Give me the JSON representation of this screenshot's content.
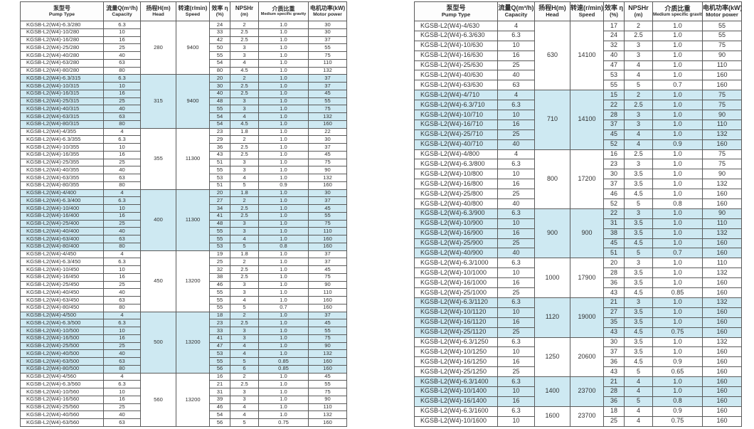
{
  "page": {
    "background": "#ffffff"
  },
  "colors": {
    "shaded_row": "#cee9f2",
    "border": "#5a5a5a",
    "text": "#303030"
  },
  "columns": {
    "pump_type": {
      "zh": "泵型号",
      "en": "Pump Type"
    },
    "capacity": {
      "zh": "流量Q(m³/h)",
      "en": "Capacity"
    },
    "head": {
      "zh": "扬程H(m)",
      "en": "Head"
    },
    "speed": {
      "zh": "转速(r/min)",
      "en": "Speed"
    },
    "efficiency": {
      "zh": "效率 η",
      "en": "(%)"
    },
    "npshr": {
      "zh": "NPSHr",
      "en": "(m)"
    },
    "gravity": {
      "zh": "介质比重",
      "en": "Medium specific gravity"
    },
    "power": {
      "zh": "电机功率(kW)",
      "en": "Motor power"
    }
  },
  "left_table": {
    "groups": [
      {
        "head": "280",
        "speed": "9400",
        "shaded": false,
        "rows": [
          [
            "KGSB-L2(W4)-6.3/280",
            "6.3",
            "24",
            "2",
            "1.0",
            "30"
          ],
          [
            "KGSB-L2(W4)-10/280",
            "10",
            "33",
            "2.5",
            "1.0",
            "30"
          ],
          [
            "KGSB-L2(W4)-16/280",
            "16",
            "42",
            "2.5",
            "1.0",
            "37"
          ],
          [
            "KGSB-L2(W4)-25/280",
            "25",
            "50",
            "3",
            "1.0",
            "55"
          ],
          [
            "KGSB-L2(W4)-40/280",
            "40",
            "55",
            "3",
            "1.0",
            "75"
          ],
          [
            "KGSB-L2(W4)-63/280",
            "63",
            "54",
            "4",
            "1.0",
            "110"
          ],
          [
            "KGSB-L2(W4)-80/280",
            "80",
            "80",
            "4.5",
            "1.0",
            "132"
          ]
        ]
      },
      {
        "head": "315",
        "speed": "9400",
        "shaded": true,
        "rows": [
          [
            "KGSB-L2(W4)-6.3/315",
            "6.3",
            "20",
            "2",
            "1.0",
            "37"
          ],
          [
            "KGSB-L2(W4)-10/315",
            "10",
            "30",
            "2.5",
            "1.0",
            "37"
          ],
          [
            "KGSB-L2(W4)-16/315",
            "16",
            "40",
            "2.5",
            "1.0",
            "45"
          ],
          [
            "KGSB-L2(W4)-25/315",
            "25",
            "48",
            "3",
            "1.0",
            "55"
          ],
          [
            "KGSB-L2(W4)-40/315",
            "40",
            "55",
            "3",
            "1.0",
            "75"
          ],
          [
            "KGSB-L2(W4)-63/315",
            "63",
            "54",
            "4",
            "1.0",
            "132"
          ],
          [
            "KGSB-L2(W4)-80/315",
            "80",
            "54",
            "4.5",
            "1.0",
            "160"
          ]
        ]
      },
      {
        "head": "355",
        "speed": "11300",
        "shaded": false,
        "rows": [
          [
            "KGSB-L2(W4)-4/355",
            "4",
            "23",
            "1.8",
            "1.0",
            "22"
          ],
          [
            "KGSB-L2(W4)-6.3/355",
            "6.3",
            "29",
            "2",
            "1.0",
            "30"
          ],
          [
            "KGSB-L2(W4)-10/355",
            "10",
            "36",
            "2.5",
            "1.0",
            "37"
          ],
          [
            "KGSB-L2(W4)-16/355",
            "16",
            "43",
            "2.5",
            "1.0",
            "45"
          ],
          [
            "KGSB-L2(W4)-25/355",
            "25",
            "51",
            "3",
            "1.0",
            "75"
          ],
          [
            "KGSB-L2(W4)-40/355",
            "40",
            "55",
            "3",
            "1.0",
            "90"
          ],
          [
            "KGSB-L2(W4)-63/355",
            "63",
            "53",
            "4",
            "1.0",
            "132"
          ],
          [
            "KGSB-L2(W4)-80/355",
            "80",
            "51",
            "5",
            "0.9",
            "160"
          ]
        ]
      },
      {
        "head": "400",
        "speed": "11300",
        "shaded": true,
        "rows": [
          [
            "KGSB-L2(W4)-4/400",
            "4",
            "20",
            "1.8",
            "1.0",
            "30"
          ],
          [
            "KGSB-L2(W4)-6.3/400",
            "6.3",
            "27",
            "2",
            "1.0",
            "37"
          ],
          [
            "KGSB-L2(W4)-10/400",
            "10",
            "34",
            "2.5",
            "1.0",
            "45"
          ],
          [
            "KGSB-L2(W4)-16/400",
            "16",
            "41",
            "2.5",
            "1.0",
            "55"
          ],
          [
            "KGSB-L2(W4)-25/400",
            "25",
            "48",
            "3",
            "1.0",
            "75"
          ],
          [
            "KGSB-L2(W4)-40/400",
            "40",
            "55",
            "3",
            "1.0",
            "110"
          ],
          [
            "KGSB-L2(W4)-63/400",
            "63",
            "55",
            "4",
            "1.0",
            "160"
          ],
          [
            "KGSB-L2(W4)-80/400",
            "80",
            "53",
            "5",
            "0.8",
            "160"
          ]
        ]
      },
      {
        "head": "450",
        "speed": "13200",
        "shaded": false,
        "rows": [
          [
            "KGSB-L2(W4)-4/450",
            "4",
            "19",
            "1.8",
            "1.0",
            "37"
          ],
          [
            "KGSB-L2(W4)-6.3/450",
            "6.3",
            "25",
            "2",
            "1.0",
            "37"
          ],
          [
            "KGSB-L2(W4)-10/450",
            "10",
            "32",
            "2.5",
            "1.0",
            "45"
          ],
          [
            "KGSB-L2(W4)-16/450",
            "16",
            "38",
            "2.5",
            "1.0",
            "75"
          ],
          [
            "KGSB-L2(W4)-25/450",
            "25",
            "46",
            "3",
            "1.0",
            "90"
          ],
          [
            "KGSB-L2(W4)-40/450",
            "40",
            "55",
            "3",
            "1.0",
            "110"
          ],
          [
            "KGSB-L2(W4)-63/450",
            "63",
            "55",
            "4",
            "1.0",
            "160"
          ],
          [
            "KGSB-L2(W4)-80/450",
            "80",
            "55",
            "5",
            "0.7",
            "160"
          ]
        ]
      },
      {
        "head": "500",
        "speed": "13200",
        "shaded": true,
        "rows": [
          [
            "KGSB-L2(W4)-4/500",
            "4",
            "18",
            "2",
            "1.0",
            "37"
          ],
          [
            "KGSB-L2(W4)-6.3/500",
            "6.3",
            "23",
            "2.5",
            "1.0",
            "45"
          ],
          [
            "KGSB-L2(W4)-10/500",
            "10",
            "33",
            "3",
            "1.0",
            "55"
          ],
          [
            "KGSB-L2(W4)-16/500",
            "16",
            "41",
            "3",
            "1.0",
            "75"
          ],
          [
            "KGSB-L2(W4)-25/500",
            "25",
            "47",
            "4",
            "1.0",
            "90"
          ],
          [
            "KGSB-L2(W4)-40/500",
            "40",
            "53",
            "4",
            "1.0",
            "132"
          ],
          [
            "KGSB-L2(W4)-63/500",
            "63",
            "55",
            "5",
            "0.85",
            "160"
          ],
          [
            "KGSB-L2(W4)-80/500",
            "80",
            "56",
            "6",
            "0.85",
            "160"
          ]
        ]
      },
      {
        "head": "560",
        "speed": "13200",
        "shaded": false,
        "rows": [
          [
            "KGSB-L2(W4)-4/560",
            "4",
            "16",
            "2",
            "1.0",
            "45"
          ],
          [
            "KGSB-L2(W4)-6.3/560",
            "6.3",
            "21",
            "2.5",
            "1.0",
            "55"
          ],
          [
            "KGSB-L2(W4)-10/560",
            "10",
            "31",
            "3",
            "1.0",
            "75"
          ],
          [
            "KGSB-L2(W4)-16/560",
            "16",
            "39",
            "3",
            "1.0",
            "90"
          ],
          [
            "KGSB-L2(W4)-25/560",
            "25",
            "46",
            "4",
            "1.0",
            "110"
          ],
          [
            "KGSB-L2(W4)-40/560",
            "40",
            "54",
            "4",
            "1.0",
            "132"
          ],
          [
            "KGSB-L2(W4)-63/560",
            "63",
            "56",
            "5",
            "0.75",
            "160"
          ]
        ]
      }
    ]
  },
  "right_table": {
    "groups": [
      {
        "head": "630",
        "speed": "14100",
        "shaded": false,
        "rows": [
          [
            "KGSB-L2(W4)-4/630",
            "4",
            "17",
            "2",
            "1.0",
            "55"
          ],
          [
            "KGSB-L2(W4)-6.3/630",
            "6.3",
            "24",
            "2.5",
            "1.0",
            "55"
          ],
          [
            "KGSB-L2(W4)-10/630",
            "10",
            "32",
            "3",
            "1.0",
            "75"
          ],
          [
            "KGSB-L2(W4)-16/630",
            "16",
            "40",
            "3",
            "1.0",
            "90"
          ],
          [
            "KGSB-L2(W4)-25/630",
            "25",
            "47",
            "4",
            "1.0",
            "110"
          ],
          [
            "KGSB-L2(W4)-40/630",
            "40",
            "53",
            "4",
            "1.0",
            "160"
          ],
          [
            "KGSB-L2(W4)-63/630",
            "63",
            "55",
            "5",
            "0.7",
            "160"
          ]
        ]
      },
      {
        "head": "710",
        "speed": "14100",
        "shaded": true,
        "rows": [
          [
            "KGSB-L2(W4)-4/710",
            "4",
            "15",
            "2",
            "1.0",
            "75"
          ],
          [
            "KGSB-L2(W4)-6.3/710",
            "6.3",
            "22",
            "2.5",
            "1.0",
            "75"
          ],
          [
            "KGSB-L2(W4)-10/710",
            "10",
            "28",
            "3",
            "1.0",
            "90"
          ],
          [
            "KGSB-L2(W4)-16/710",
            "16",
            "37",
            "3",
            "1.0",
            "110"
          ],
          [
            "KGSB-L2(W4)-25/710",
            "25",
            "45",
            "4",
            "1.0",
            "132"
          ],
          [
            "KGSB-L2(W4)-40/710",
            "40",
            "52",
            "4",
            "0.9",
            "160"
          ]
        ]
      },
      {
        "head": "800",
        "speed": "17200",
        "shaded": false,
        "rows": [
          [
            "KGSB-L2(W4)-4/800",
            "4",
            "16",
            "2.5",
            "1.0",
            "75"
          ],
          [
            "KGSB-L2(W4)-6.3/800",
            "6.3",
            "23",
            "3",
            "1.0",
            "75"
          ],
          [
            "KGSB-L2(W4)-10/800",
            "10",
            "30",
            "3.5",
            "1.0",
            "90"
          ],
          [
            "KGSB-L2(W4)-16/800",
            "16",
            "37",
            "3.5",
            "1.0",
            "132"
          ],
          [
            "KGSB-L2(W4)-25/800",
            "25",
            "46",
            "4.5",
            "1.0",
            "160"
          ],
          [
            "KGSB-L2(W4)-40/800",
            "40",
            "52",
            "5",
            "0.8",
            "160"
          ]
        ]
      },
      {
        "head": "900",
        "speed": "900",
        "shaded": true,
        "rows": [
          [
            "KGSB-L2(W4)-6.3/900",
            "6.3",
            "22",
            "3",
            "1.0",
            "90"
          ],
          [
            "KGSB-L2(W4)-10/900",
            "10",
            "31",
            "3.5",
            "1.0",
            "110"
          ],
          [
            "KGSB-L2(W4)-16/900",
            "16",
            "38",
            "3.5",
            "1.0",
            "132"
          ],
          [
            "KGSB-L2(W4)-25/900",
            "25",
            "45",
            "4.5",
            "1.0",
            "160"
          ],
          [
            "KGSB-L2(W4)-40/900",
            "40",
            "51",
            "5",
            "0.7",
            "160"
          ]
        ]
      },
      {
        "head": "1000",
        "speed": "17900",
        "shaded": false,
        "rows": [
          [
            "KGSB-L2(W4)-6.3/1000",
            "6.3",
            "20",
            "3",
            "1.0",
            "110"
          ],
          [
            "KGSB-L2(W4)-10/1000",
            "10",
            "28",
            "3.5",
            "1.0",
            "132"
          ],
          [
            "KGSB-L2(W4)-16/1000",
            "16",
            "36",
            "3.5",
            "1.0",
            "160"
          ],
          [
            "KGSB-L2(W4)-25/1000",
            "25",
            "43",
            "4.5",
            "0.85",
            "160"
          ]
        ]
      },
      {
        "head": "1120",
        "speed": "19000",
        "shaded": true,
        "rows": [
          [
            "KGSB-L2(W4)-6.3/1120",
            "6.3",
            "21",
            "3",
            "1.0",
            "132"
          ],
          [
            "KGSB-L2(W4)-10/1120",
            "10",
            "27",
            "3.5",
            "1.0",
            "160"
          ],
          [
            "KGSB-L2(W4)-16/1120",
            "16",
            "35",
            "3.5",
            "1.0",
            "160"
          ],
          [
            "KGSB-L2(W4)-25/1120",
            "25",
            "43",
            "4.5",
            "0.75",
            "160"
          ]
        ]
      },
      {
        "head": "1250",
        "speed": "20600",
        "shaded": false,
        "rows": [
          [
            "KGSB-L2(W4)-6.3/1250",
            "6.3",
            "30",
            "3.5",
            "1.0",
            "132"
          ],
          [
            "KGSB-L2(W4)-10/1250",
            "10",
            "37",
            "3.5",
            "1.0",
            "160"
          ],
          [
            "KGSB-L2(W4)-16/1250",
            "16",
            "36",
            "4.5",
            "0.9",
            "160"
          ],
          [
            "KGSB-L2(W4)-25/1250",
            "25",
            "43",
            "5",
            "0.65",
            "160"
          ]
        ]
      },
      {
        "head": "1400",
        "speed": "23700",
        "shaded": true,
        "rows": [
          [
            "KGSB-L2(W4)-6.3/1400",
            "6.3",
            "21",
            "4",
            "1.0",
            "160"
          ],
          [
            "KGSB-L2(W4)-10/1400",
            "10",
            "28",
            "4",
            "1.0",
            "160"
          ],
          [
            "KGSB-L2(W4)-16/1400",
            "16",
            "36",
            "5",
            "0.8",
            "160"
          ]
        ]
      },
      {
        "head": "1600",
        "speed": "23700",
        "shaded": false,
        "rows": [
          [
            "KGSB-L2(W4)-6.3/1600",
            "6.3",
            "18",
            "4",
            "0.9",
            "160"
          ],
          [
            "KGSB-L2(W4)-10/1600",
            "10",
            "25",
            "4",
            "0.75",
            "160"
          ]
        ]
      }
    ]
  }
}
